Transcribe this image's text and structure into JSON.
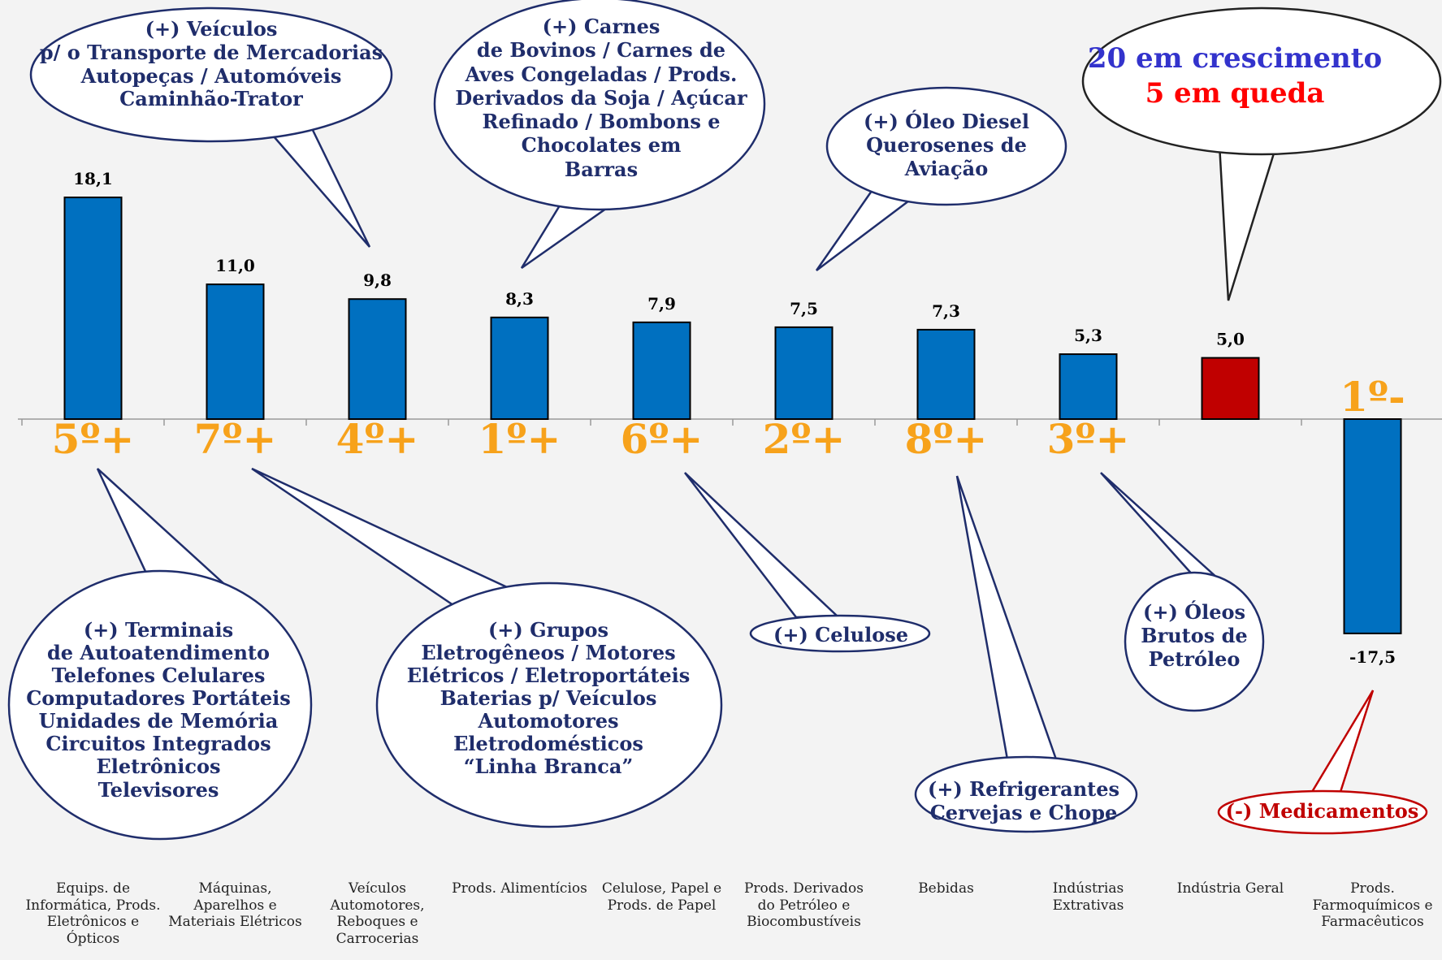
{
  "chart_data": {
    "type": "bar",
    "categories": [
      [
        "Equips. de",
        "Informática, Prods.",
        "Eletrônicos e",
        "Ópticos"
      ],
      [
        "Máquinas,",
        "Aparelhos e",
        "Materiais Elétricos"
      ],
      [
        "Veículos",
        "Automotores,",
        "Reboques e",
        "Carrocerias"
      ],
      [
        "Prods. Alimentícios"
      ],
      [
        "Celulose, Papel e",
        "Prods. de Papel"
      ],
      [
        "Prods. Derivados",
        "do Petróleo e",
        "Biocombustíveis"
      ],
      [
        "Bebidas"
      ],
      [
        "Indústrias",
        "Extrativas"
      ],
      [
        "Indústria Geral"
      ],
      [
        "Prods.",
        "Farmoquímicos e",
        "Farmacêuticos"
      ]
    ],
    "values": [
      18.1,
      11.0,
      9.8,
      8.3,
      7.9,
      7.5,
      7.3,
      5.3,
      5.0,
      -17.5
    ],
    "value_labels": [
      "18,1",
      "11,0",
      "9,8",
      "8,3",
      "7,9",
      "7,5",
      "7,3",
      "5,3",
      "5,0",
      "-17,5"
    ],
    "rank_labels": [
      "5º+",
      "7º+",
      "4º+",
      "1º+",
      "6º+",
      "2º+",
      "8º+",
      "3º+",
      "",
      "1º-"
    ],
    "bar_colors": [
      "#0070c0",
      "#0070c0",
      "#0070c0",
      "#0070c0",
      "#0070c0",
      "#0070c0",
      "#0070c0",
      "#0070c0",
      "#c00000",
      "#0070c0"
    ],
    "highlight_category": "Indústria Geral",
    "title": "",
    "xlabel": "",
    "ylabel": "",
    "ylim": [
      -20,
      20
    ],
    "grid": false,
    "legend": "none"
  },
  "colors": {
    "positive_bar": "#0070c0",
    "highlight_bar": "#c00000",
    "rank_text": "#f7a21b",
    "callout_text": "#1f2d6b",
    "callout_border": "#1f2d6b",
    "negative_callout": "#c00000",
    "summary_growth": "#3333cc",
    "summary_decline": "#ff0000"
  },
  "summary": {
    "growth": "20 em crescimento",
    "decline": "5 em queda"
  },
  "callouts": [
    {
      "lines": [
        "(+) Veículos",
        "p/ o Transporte de Mercadorias",
        "Autopeças / Automóveis",
        "Caminhão-Trator"
      ]
    },
    {
      "lines": [
        "(+) Carnes",
        "de Bovinos / Carnes de",
        "Aves Congeladas / Prods.",
        "Derivados da Soja / Açúcar",
        "Refinado / Bombons e",
        "Chocolates em",
        "Barras"
      ]
    },
    {
      "lines": [
        "(+) Óleo Diesel",
        "Querosenes de",
        "Aviação"
      ]
    },
    {
      "lines": [
        "(+) Terminais",
        "de Autoatendimento",
        "Telefones Celulares",
        "Computadores Portáteis",
        "Unidades de Memória",
        "Circuitos Integrados",
        "Eletrônicos",
        "Televisores"
      ]
    },
    {
      "lines": [
        "(+)  Grupos",
        "Eletrogêneos / Motores",
        "Elétricos / Eletroportáteis",
        "Baterias p/ Veículos",
        "Automotores",
        "Eletrodomésticos",
        "“Linha Branca”"
      ]
    },
    {
      "lines": [
        "(+) Celulose"
      ]
    },
    {
      "lines": [
        "(+) Refrigerantes",
        "Cervejas e Chope"
      ]
    },
    {
      "lines": [
        "(+) Óleos",
        "Brutos de",
        "Petróleo"
      ]
    },
    {
      "lines": [
        "(-) Medicamentos"
      ]
    }
  ]
}
